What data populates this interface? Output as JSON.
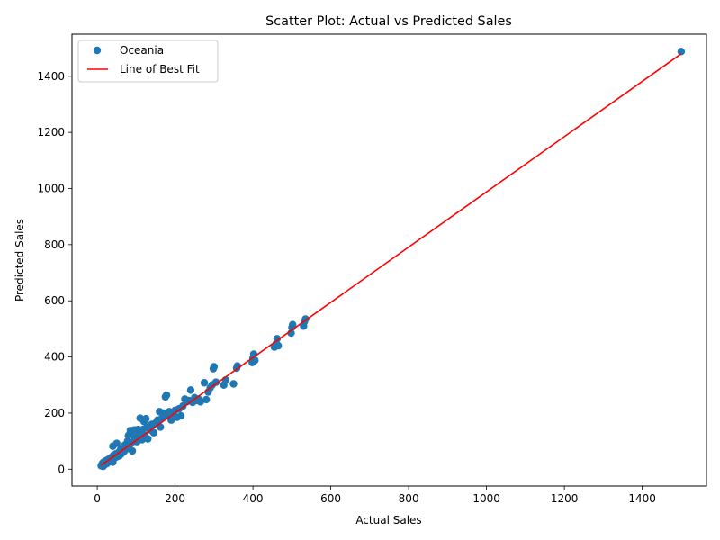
{
  "chart_data": {
    "type": "scatter",
    "title": "Scatter Plot: Actual vs Predicted Sales",
    "xlabel": "Actual Sales",
    "ylabel": "Predicted Sales",
    "xlim": [
      -65,
      1565
    ],
    "ylim": [
      -60,
      1550
    ],
    "xticks": [
      0,
      200,
      400,
      600,
      800,
      1000,
      1200,
      1400
    ],
    "yticks": [
      0,
      200,
      400,
      600,
      800,
      1000,
      1200,
      1400
    ],
    "grid": false,
    "legend_position": "top-left",
    "series": [
      {
        "name": "Oceania",
        "kind": "scatter",
        "color": "#1f77b4",
        "points": [
          [
            10,
            12
          ],
          [
            12,
            18
          ],
          [
            14,
            22
          ],
          [
            15,
            10
          ],
          [
            17,
            26
          ],
          [
            18,
            14
          ],
          [
            20,
            24
          ],
          [
            22,
            30
          ],
          [
            25,
            20
          ],
          [
            27,
            34
          ],
          [
            30,
            28
          ],
          [
            32,
            38
          ],
          [
            35,
            30
          ],
          [
            38,
            44
          ],
          [
            40,
            82
          ],
          [
            40,
            25
          ],
          [
            42,
            50
          ],
          [
            45,
            40
          ],
          [
            48,
            55
          ],
          [
            50,
            92
          ],
          [
            52,
            45
          ],
          [
            55,
            60
          ],
          [
            57,
            48
          ],
          [
            60,
            70
          ],
          [
            62,
            55
          ],
          [
            65,
            78
          ],
          [
            68,
            62
          ],
          [
            70,
            85
          ],
          [
            72,
            68
          ],
          [
            75,
            90
          ],
          [
            78,
            100
          ],
          [
            80,
            120
          ],
          [
            82,
            78
          ],
          [
            85,
            138
          ],
          [
            88,
            95
          ],
          [
            90,
            65
          ],
          [
            92,
            130
          ],
          [
            95,
            140
          ],
          [
            97,
            110
          ],
          [
            100,
            125
          ],
          [
            102,
            98
          ],
          [
            105,
            142
          ],
          [
            108,
            115
          ],
          [
            110,
            182
          ],
          [
            112,
            130
          ],
          [
            115,
            105
          ],
          [
            118,
            142
          ],
          [
            120,
            170
          ],
          [
            122,
            120
          ],
          [
            125,
            180
          ],
          [
            128,
            150
          ],
          [
            130,
            108
          ],
          [
            135,
            140
          ],
          [
            140,
            160
          ],
          [
            145,
            130
          ],
          [
            150,
            165
          ],
          [
            155,
            175
          ],
          [
            160,
            205
          ],
          [
            162,
            150
          ],
          [
            165,
            180
          ],
          [
            170,
            200
          ],
          [
            175,
            258
          ],
          [
            178,
            264
          ],
          [
            180,
            190
          ],
          [
            185,
            205
          ],
          [
            190,
            175
          ],
          [
            195,
            200
          ],
          [
            200,
            210
          ],
          [
            205,
            185
          ],
          [
            210,
            215
          ],
          [
            215,
            190
          ],
          [
            220,
            225
          ],
          [
            225,
            250
          ],
          [
            230,
            240
          ],
          [
            235,
            245
          ],
          [
            240,
            282
          ],
          [
            245,
            238
          ],
          [
            250,
            255
          ],
          [
            255,
            245
          ],
          [
            260,
            250
          ],
          [
            265,
            240
          ],
          [
            275,
            308
          ],
          [
            280,
            248
          ],
          [
            285,
            275
          ],
          [
            290,
            290
          ],
          [
            295,
            300
          ],
          [
            298,
            358
          ],
          [
            300,
            365
          ],
          [
            305,
            310
          ],
          [
            325,
            300
          ],
          [
            330,
            318
          ],
          [
            350,
            304
          ],
          [
            358,
            360
          ],
          [
            360,
            368
          ],
          [
            398,
            380
          ],
          [
            400,
            395
          ],
          [
            402,
            410
          ],
          [
            405,
            388
          ],
          [
            455,
            435
          ],
          [
            460,
            448
          ],
          [
            462,
            465
          ],
          [
            465,
            440
          ],
          [
            498,
            485
          ],
          [
            500,
            505
          ],
          [
            502,
            515
          ],
          [
            530,
            510
          ],
          [
            532,
            525
          ],
          [
            535,
            535
          ],
          [
            1500,
            1488
          ]
        ]
      },
      {
        "name": "Line of Best Fit",
        "kind": "line",
        "color": "#ff0000",
        "points": [
          [
            10,
            14
          ],
          [
            1500,
            1480
          ]
        ]
      }
    ]
  }
}
